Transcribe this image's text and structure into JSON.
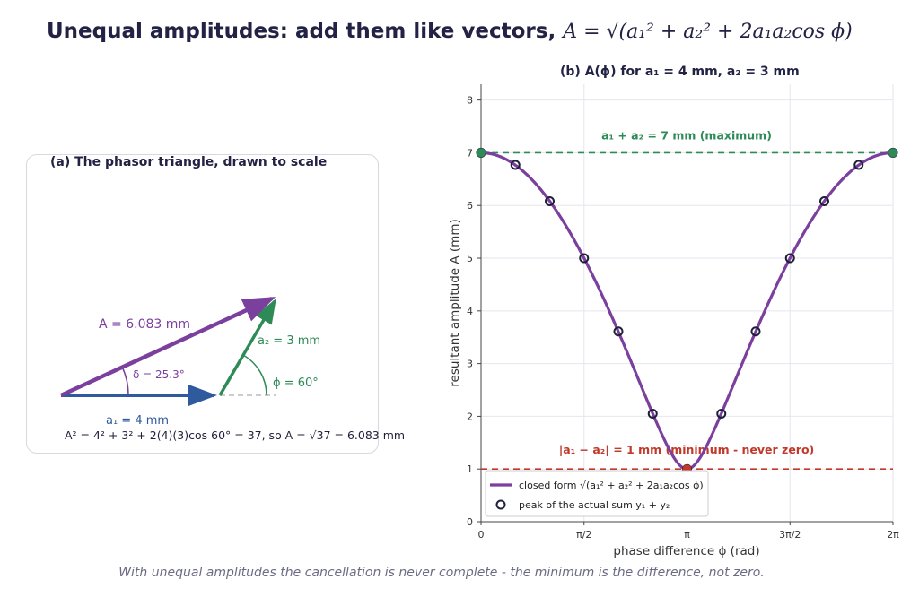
{
  "header": {
    "title": "Unequal amplitudes:  add them like vectors,",
    "formula": "A = √(a₁² + a₂² + 2a₁a₂cos ϕ)"
  },
  "panel_a": {
    "title": "(a)  The phasor triangle,  drawn to scale",
    "label_A": "A = 6.083 mm",
    "label_a2": "a₂ = 3 mm",
    "label_a1": "a₁ = 4 mm",
    "label_delta": "δ = 25.3°",
    "label_phi": "ϕ = 60°",
    "equation": "A² = 4² + 3² + 2(4)(3)cos 60° = 37,   so  A = √37 = 6.083 mm",
    "a1": 4,
    "a2": 3,
    "phi_deg": 60,
    "colors": {
      "a1": "#2f5a9e",
      "a2": "#2e8b57",
      "A": "#7b3f9e"
    }
  },
  "chart_data": {
    "type": "line",
    "title": "(b)  A(ϕ)  for  a₁ = 4 mm,  a₂ = 3 mm",
    "xlabel": "phase difference  ϕ  (rad)",
    "ylabel": "resultant amplitude  A  (mm)",
    "xlim": [
      0,
      6.2832
    ],
    "ylim": [
      0,
      8.3
    ],
    "x_ticks": [
      {
        "value": 0,
        "label": "0"
      },
      {
        "value": 1.5708,
        "label": "π/2"
      },
      {
        "value": 3.1416,
        "label": "π"
      },
      {
        "value": 4.7124,
        "label": "3π/2"
      },
      {
        "value": 6.2832,
        "label": "2π"
      }
    ],
    "y_ticks": [
      0,
      1,
      2,
      3,
      4,
      5,
      6,
      7,
      8
    ],
    "grid": true,
    "a1": 4,
    "a2": 3,
    "series": [
      {
        "name": "closed form  √(a₁² + a₂² + 2a₁a₂cos ϕ)",
        "kind": "curve",
        "color": "#7b3f9e"
      },
      {
        "name": "peak of the actual sum  y₁ + y₂",
        "kind": "markers",
        "color": "#1f1f3a",
        "x": [
          0,
          0.5236,
          1.0472,
          1.5708,
          2.0944,
          2.618,
          3.1416,
          3.6652,
          4.1888,
          4.7124,
          5.236,
          5.7596,
          6.2832
        ],
        "y": [
          7.0,
          6.77,
          6.08,
          5.0,
          3.61,
          2.05,
          1.0,
          2.05,
          3.61,
          5.0,
          6.08,
          6.77,
          7.0
        ]
      }
    ],
    "reference_lines": [
      {
        "y": 7,
        "label": "a₁ + a₂ = 7 mm  (maximum)",
        "color": "#2e8b57"
      },
      {
        "y": 1,
        "label": "|a₁ − a₂| = 1 mm  (minimum - never zero)",
        "color": "#c0392b"
      }
    ],
    "highlight_points": [
      {
        "x": 0,
        "y": 7,
        "color": "#2e8b57"
      },
      {
        "x": 6.2832,
        "y": 7,
        "color": "#2e8b57"
      },
      {
        "x": 3.1416,
        "y": 1,
        "color": "#c0392b"
      }
    ],
    "legend_position": "lower-left"
  },
  "caption": "With unequal amplitudes the cancellation is never complete - the minimum is the difference, not zero."
}
